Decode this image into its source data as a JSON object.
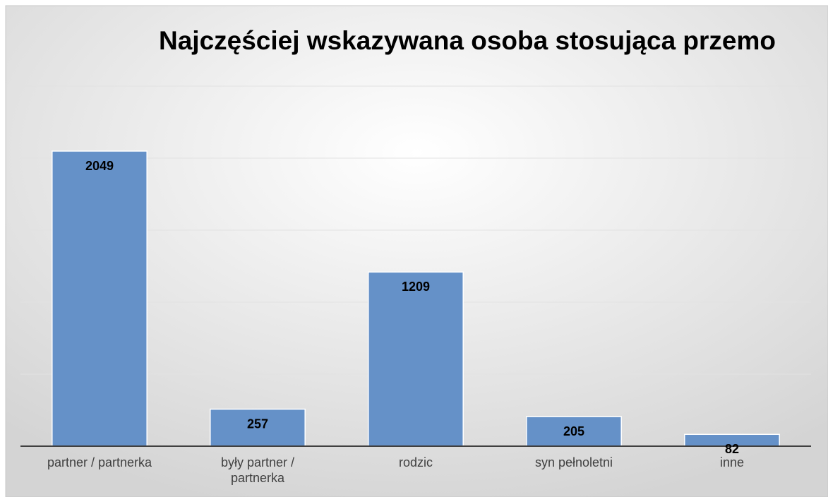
{
  "chart_data": {
    "type": "bar",
    "title": "Najczęściej wskazywana osoba stosująca przemo",
    "categories": [
      "partner / partnerka",
      "były partner / partnerka",
      "rodzic",
      "syn pełnoletni",
      "inne"
    ],
    "values": [
      2049,
      257,
      1209,
      205,
      82
    ],
    "color": "#6591c8",
    "ylim": [
      0,
      2500
    ],
    "yticks": [
      0,
      500,
      1000,
      1500,
      2000,
      2500
    ],
    "grid": true
  }
}
